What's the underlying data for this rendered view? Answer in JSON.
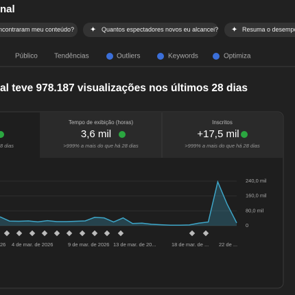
{
  "header": {
    "title": "nal"
  },
  "chips": [
    "ncontraram meu conteúdo?",
    "Quantos espectadores novos eu alcancei?",
    "Resuma o desempe"
  ],
  "tabs": [
    "Público",
    "Tendências",
    "Outliers",
    "Keywords",
    "Optimiza"
  ],
  "headline": "al teve 978.187 visualizações nos últimos 28 dias",
  "cards": [
    {
      "change": "8 dias"
    },
    {
      "title": "Tempo de exibição (horas)",
      "value": "3,6 mil",
      "change": ">999% a mais do que há 28 dias"
    },
    {
      "title": "Inscritos",
      "value": "+17,5 mil",
      "change": ">999% a mais do que há 28 dias"
    }
  ],
  "chart": {
    "type": "line",
    "color": "#3ea6c8",
    "x_labels": [
      "26",
      "4 de mar. de 2026",
      "9 de mar. de 2026",
      "13 de mar. de 20...",
      "18 de mar. de ...",
      "22 de ..."
    ],
    "values": [
      48000,
      25000,
      24000,
      26000,
      21000,
      27000,
      22000,
      22000,
      24000,
      26000,
      45000,
      42000,
      20000,
      42000,
      12000,
      14000,
      8000,
      5000,
      3000,
      3000,
      4000,
      14000,
      20000,
      236000,
      115000,
      15000
    ],
    "ylim": [
      0,
      240000
    ],
    "yticks": [
      {
        "value": 240000,
        "label": "240,0 mil"
      },
      {
        "value": 160000,
        "label": "160,0 mil"
      },
      {
        "value": 80000,
        "label": "80,0 mil"
      },
      0
    ]
  }
}
